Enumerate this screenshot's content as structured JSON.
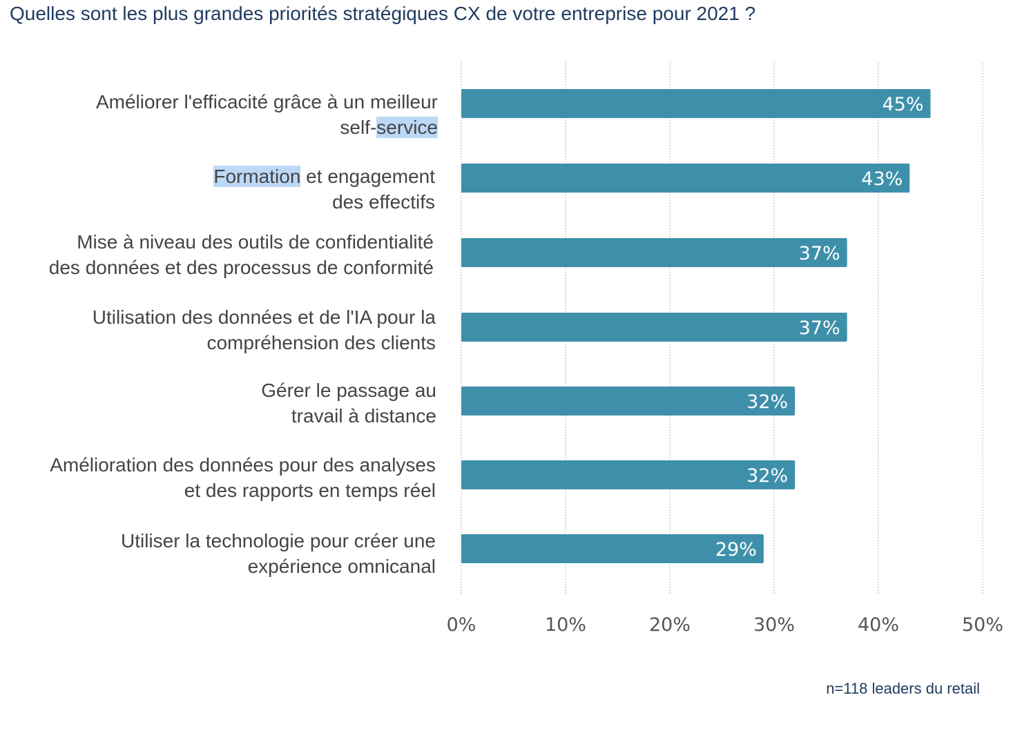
{
  "title": "Quelles sont les plus grandes priorités stratégiques CX de votre entreprise pour 2021 ?",
  "footnote": "n=118 leaders du retail",
  "colors": {
    "bar": "#3e90aa",
    "title": "#1f3a5f",
    "text": "#444444",
    "highlight": "#bcd8f7"
  },
  "categories_display": [
    {
      "line1": "Améliorer l'efficacité grâce à un meilleur",
      "line2_prefix": "self-",
      "line2_hl": "service"
    },
    {
      "line1_hl": "Formation",
      "line1_rest": " et engagement",
      "line2": "des effectifs"
    },
    {
      "line1": "Mise à niveau des outils de confidentialité",
      "line2": "des données et des processus de conformité"
    },
    {
      "line1": "Utilisation des données et de l'IA pour la",
      "line2": "compréhension des clients"
    },
    {
      "line1": "Gérer le passage au",
      "line2": "travail à distance"
    },
    {
      "line1": "Amélioration des données pour des analyses",
      "line2": "et des rapports en temps réel"
    },
    {
      "line1": "Utiliser la technologie pour créer une",
      "line2": "expérience omnicanal"
    }
  ],
  "chart_data": {
    "type": "bar",
    "orientation": "horizontal",
    "title": "Quelles sont les plus grandes priorités stratégiques CX de votre entreprise pour 2021 ?",
    "categories": [
      "Améliorer l'efficacité grâce à un meilleur self-service",
      "Formation et engagement des effectifs",
      "Mise à niveau des outils de confidentialité des données et des processus de conformité",
      "Utilisation des données et de l'IA pour la compréhension des clients",
      "Gérer le passage au travail à distance",
      "Amélioration des données pour des analyses et des rapports en temps réel",
      "Utiliser la technologie pour créer une expérience omnicanal"
    ],
    "values": [
      45,
      43,
      37,
      37,
      32,
      32,
      29
    ],
    "value_labels": [
      "45%",
      "43%",
      "37%",
      "37%",
      "32%",
      "32%",
      "29%"
    ],
    "xlim": [
      0,
      50
    ],
    "xticks": [
      "0%",
      "10%",
      "20%",
      "30%",
      "40%",
      "50%"
    ],
    "grid": true,
    "annotation": "n=118 leaders du retail"
  }
}
